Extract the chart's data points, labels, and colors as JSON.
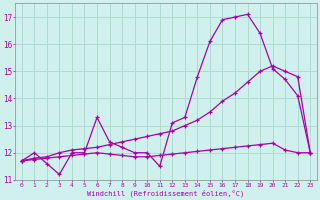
{
  "xlabel": "Windchill (Refroidissement éolien,°C)",
  "background_color": "#cff0ec",
  "grid_color": "#aaddcc",
  "line_color": "#aa00aa",
  "xlim": [
    -0.5,
    23.5
  ],
  "ylim": [
    11.0,
    17.5
  ],
  "yticks": [
    11,
    12,
    13,
    14,
    15,
    16,
    17
  ],
  "xticks": [
    0,
    1,
    2,
    3,
    4,
    5,
    6,
    7,
    8,
    9,
    10,
    11,
    12,
    13,
    14,
    15,
    16,
    17,
    18,
    19,
    20,
    21,
    22,
    23
  ],
  "series1_x": [
    0,
    1,
    2,
    3,
    4,
    5,
    6,
    7,
    8,
    9,
    10,
    11,
    12,
    13,
    14,
    15,
    16,
    17,
    18,
    19,
    20,
    21,
    22,
    23
  ],
  "series1_y": [
    11.7,
    12.0,
    11.6,
    11.2,
    12.0,
    12.0,
    13.3,
    12.4,
    12.2,
    12.0,
    12.0,
    11.5,
    13.1,
    13.3,
    14.8,
    16.1,
    16.9,
    17.0,
    17.1,
    16.4,
    15.1,
    14.7,
    14.1,
    12.0
  ],
  "series2_x": [
    0,
    1,
    2,
    3,
    4,
    5,
    6,
    7,
    8,
    9,
    10,
    11,
    12,
    13,
    14,
    15,
    16,
    17,
    18,
    19,
    20,
    21,
    22,
    23
  ],
  "series2_y": [
    11.7,
    11.8,
    11.85,
    12.0,
    12.1,
    12.15,
    12.2,
    12.3,
    12.4,
    12.5,
    12.6,
    12.7,
    12.8,
    13.0,
    13.2,
    13.5,
    13.9,
    14.2,
    14.6,
    15.0,
    15.2,
    15.0,
    14.8,
    12.0
  ],
  "series3_x": [
    0,
    1,
    2,
    3,
    4,
    5,
    6,
    7,
    8,
    9,
    10,
    11,
    12,
    13,
    14,
    15,
    16,
    17,
    18,
    19,
    20,
    21,
    22,
    23
  ],
  "series3_y": [
    11.7,
    11.75,
    11.8,
    11.85,
    11.9,
    11.95,
    12.0,
    11.95,
    11.9,
    11.85,
    11.85,
    11.9,
    11.95,
    12.0,
    12.05,
    12.1,
    12.15,
    12.2,
    12.25,
    12.3,
    12.35,
    12.1,
    12.0,
    12.0
  ]
}
